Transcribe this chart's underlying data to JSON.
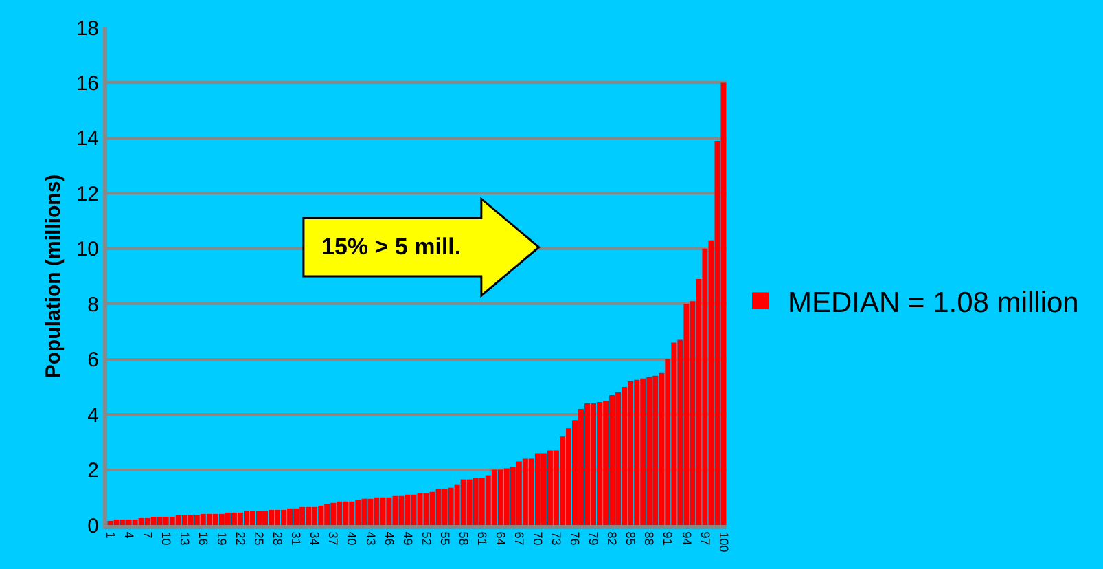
{
  "chart_data": {
    "type": "bar",
    "ylabel": "Population (millions)",
    "categories": [
      "1",
      null,
      null,
      "4",
      null,
      null,
      "7",
      null,
      null,
      "10",
      null,
      null,
      "13",
      null,
      null,
      "16",
      null,
      null,
      "19",
      null,
      null,
      "22",
      null,
      null,
      "25",
      null,
      null,
      "28",
      null,
      null,
      "31",
      null,
      null,
      "34",
      null,
      null,
      "37",
      null,
      null,
      "40",
      null,
      null,
      "43",
      null,
      null,
      "46",
      null,
      null,
      "49",
      null,
      null,
      "52",
      null,
      null,
      "55",
      null,
      null,
      "58",
      null,
      null,
      "61",
      null,
      null,
      "64",
      null,
      null,
      "67",
      null,
      null,
      "70",
      null,
      null,
      "73",
      null,
      null,
      "76",
      null,
      null,
      "79",
      null,
      null,
      "82",
      null,
      null,
      "85",
      null,
      null,
      "88",
      null,
      null,
      "91",
      null,
      null,
      "94",
      null,
      null,
      "97",
      null,
      null,
      "100"
    ],
    "series": [
      {
        "name": "MEDIAN = 1.08 million",
        "color": "#ff0000",
        "values": [
          0.15,
          0.2,
          0.2,
          0.2,
          0.2,
          0.25,
          0.25,
          0.3,
          0.3,
          0.3,
          0.3,
          0.35,
          0.35,
          0.35,
          0.35,
          0.4,
          0.4,
          0.4,
          0.4,
          0.45,
          0.45,
          0.45,
          0.5,
          0.5,
          0.5,
          0.5,
          0.55,
          0.55,
          0.55,
          0.6,
          0.6,
          0.65,
          0.65,
          0.65,
          0.7,
          0.75,
          0.8,
          0.85,
          0.85,
          0.85,
          0.9,
          0.95,
          0.95,
          1.0,
          1.0,
          1.0,
          1.05,
          1.05,
          1.1,
          1.1,
          1.15,
          1.15,
          1.2,
          1.3,
          1.3,
          1.35,
          1.45,
          1.65,
          1.65,
          1.7,
          1.7,
          1.8,
          2.0,
          2.0,
          2.05,
          2.1,
          2.3,
          2.4,
          2.4,
          2.6,
          2.6,
          2.7,
          2.7,
          3.2,
          3.5,
          3.8,
          4.2,
          4.4,
          4.4,
          4.45,
          4.5,
          4.7,
          4.8,
          5.0,
          5.2,
          5.25,
          5.3,
          5.35,
          5.4,
          5.5,
          6.0,
          6.6,
          6.7,
          8.0,
          8.1,
          8.9,
          10.0,
          10.3,
          13.9,
          16.0
        ]
      }
    ],
    "ylim": [
      0,
      18
    ],
    "yticks": [
      0,
      2,
      4,
      6,
      8,
      10,
      12,
      14,
      16,
      18
    ],
    "grid": "y",
    "legend": "right",
    "annotations": [
      "15% > 5 mill."
    ]
  }
}
